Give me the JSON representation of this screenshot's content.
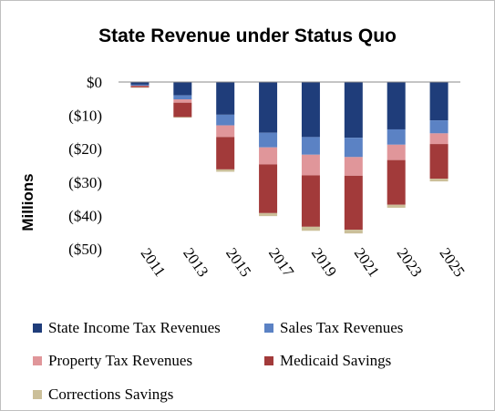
{
  "chart_data": {
    "type": "bar",
    "stacked": true,
    "title": "State Revenue under Status Quo",
    "ylabel": "Millions",
    "xlabel": "",
    "categories": [
      "2011",
      "2013",
      "2015",
      "2017",
      "2019",
      "2021",
      "2023",
      "2025"
    ],
    "ylim": [
      -50,
      0
    ],
    "yticks": [
      0,
      -10,
      -20,
      -30,
      -40,
      -50
    ],
    "ytick_labels": [
      "$0",
      "($10)",
      "($20)",
      "($30)",
      "($40)",
      "($50)"
    ],
    "grid": false,
    "legend_position": "bottom",
    "series": [
      {
        "name": "State Income Tax Revenues",
        "color": "#1f3d7a",
        "values": [
          -0.8,
          -4.0,
          -9.8,
          -15.2,
          -16.5,
          -16.7,
          -14.2,
          -11.5
        ]
      },
      {
        "name": "Sales Tax Revenues",
        "color": "#5b82c4",
        "values": [
          -0.3,
          -1.2,
          -3.2,
          -4.4,
          -5.3,
          -5.8,
          -4.6,
          -3.9
        ]
      },
      {
        "name": "Property Tax Revenues",
        "color": "#e0969a",
        "values": [
          -0.1,
          -1.0,
          -3.5,
          -5.1,
          -6.2,
          -5.6,
          -4.6,
          -3.2
        ]
      },
      {
        "name": "Medicaid Savings",
        "color": "#a23a3a",
        "values": [
          -0.4,
          -4.3,
          -9.7,
          -14.6,
          -15.4,
          -16.2,
          -13.4,
          -10.4
        ]
      },
      {
        "name": "Corrections Savings",
        "color": "#cbbf99",
        "values": [
          -0.1,
          -0.2,
          -0.7,
          -0.9,
          -1.2,
          -1.1,
          -0.9,
          -0.8
        ]
      }
    ]
  }
}
